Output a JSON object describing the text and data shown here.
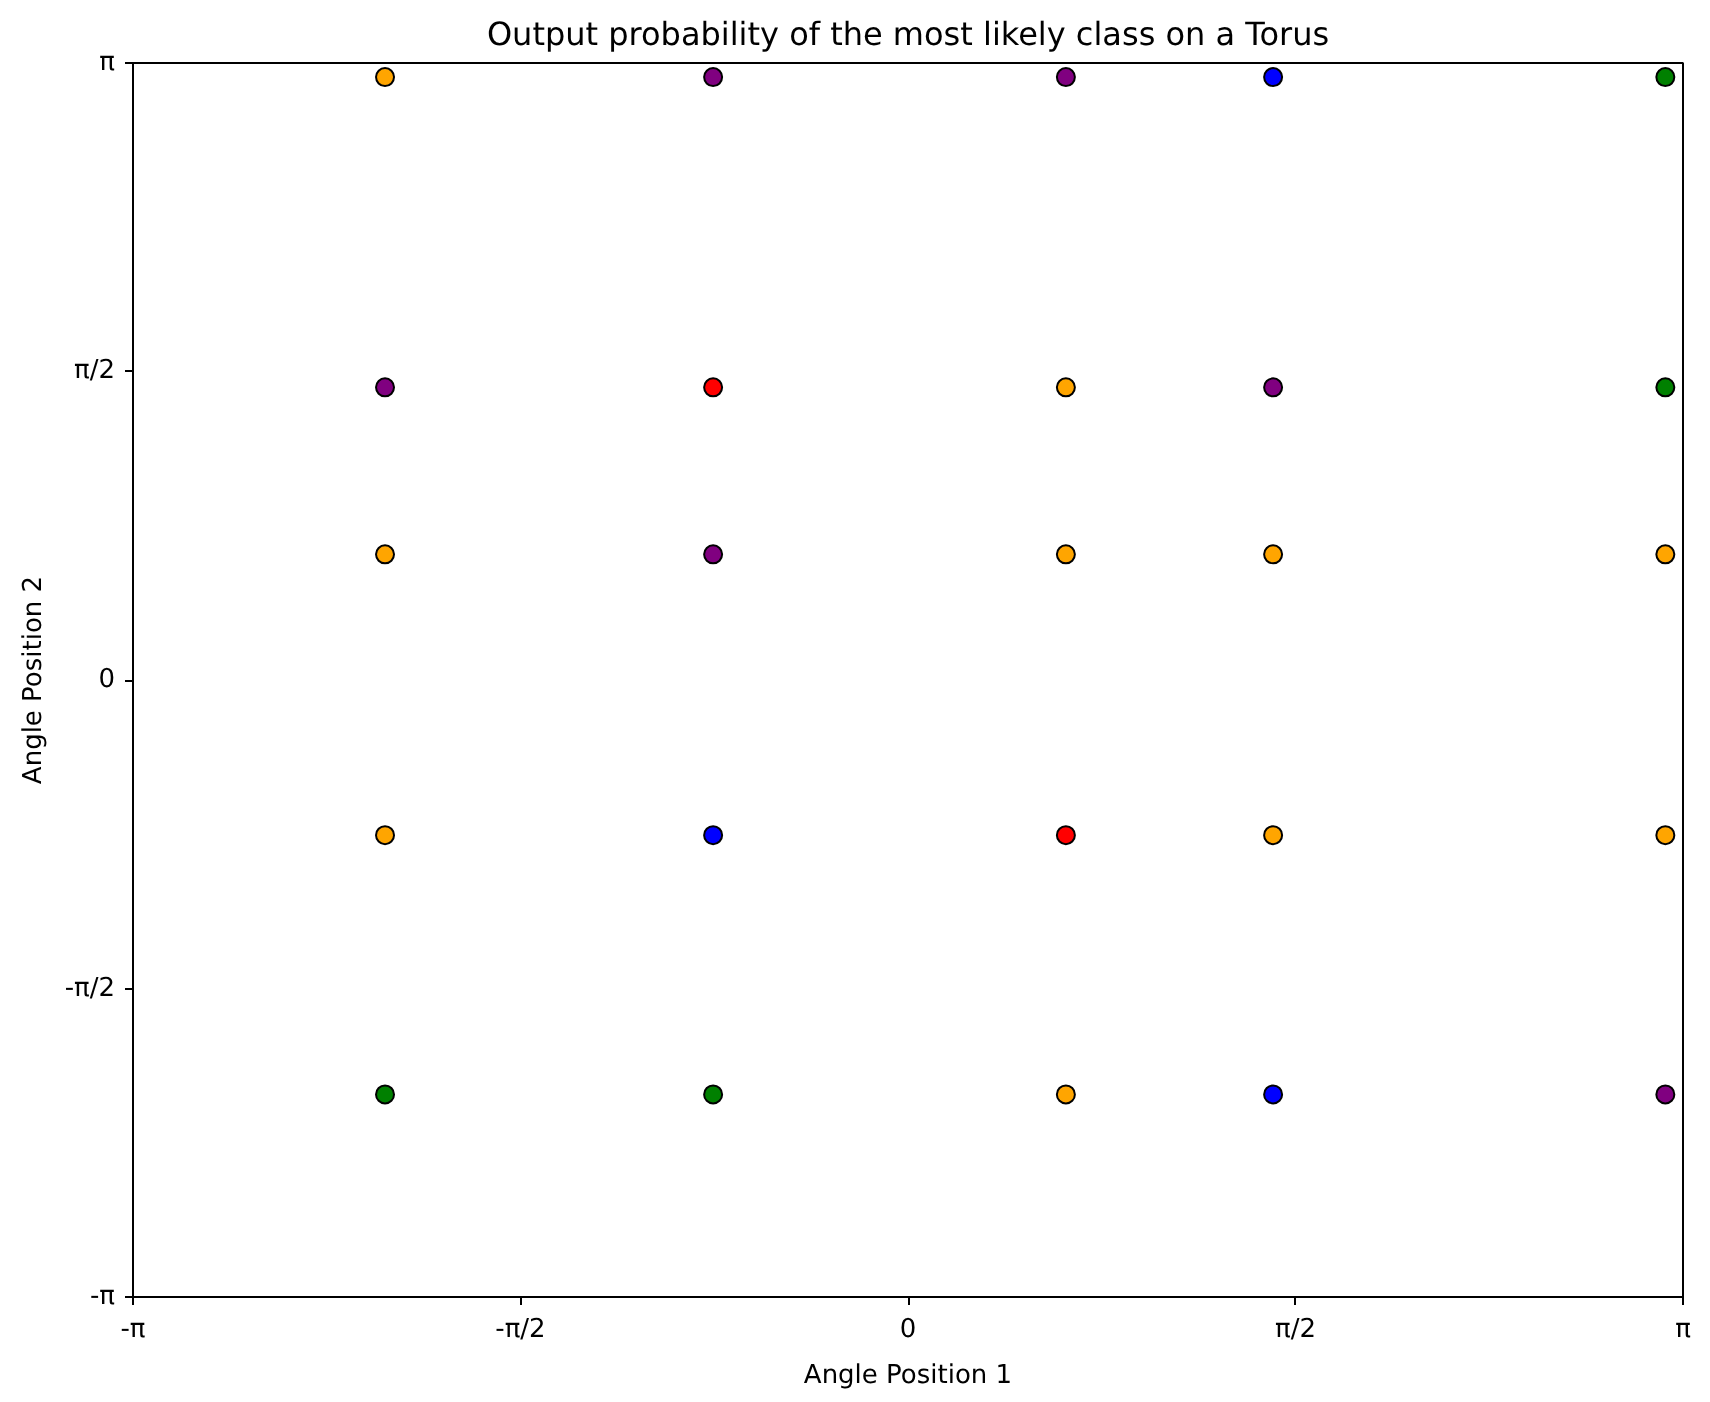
{
  "chart_data": {
    "type": "scatter",
    "title": "Output probability of the most likely class on a Torus",
    "xlabel": "Angle Position 1",
    "ylabel": "Angle Position 2",
    "xlim": [
      -3.14159,
      3.14159
    ],
    "ylim": [
      -3.14159,
      3.14159
    ],
    "xticks": [
      {
        "value": -3.14159,
        "label": "-π"
      },
      {
        "value": -1.5708,
        "label": "-π/2"
      },
      0,
      {
        "value": 1.5708,
        "label": "π/2"
      },
      {
        "value": 3.14159,
        "label": "π"
      }
    ],
    "yticks": [
      {
        "value": -3.14159,
        "label": "-π"
      },
      {
        "value": -1.5708,
        "label": "-π/2"
      },
      0,
      {
        "value": 1.5708,
        "label": "π/2"
      },
      {
        "value": 3.14159,
        "label": "π"
      }
    ],
    "grid": false,
    "marker": "circle",
    "series": [
      {
        "color": "#ffa500",
        "x": [
          -2.12,
          0.64,
          -2.12,
          0.64,
          1.48,
          3.07,
          -2.12,
          1.48,
          3.07,
          0.64
        ],
        "values": [
          3.07,
          1.49,
          0.64,
          0.64,
          0.64,
          0.64,
          -0.79,
          -0.79,
          -0.79,
          -2.11
        ]
      },
      {
        "color": "#800080",
        "x": [
          -0.79,
          0.64,
          -2.12,
          1.48,
          -0.79,
          3.07
        ],
        "values": [
          3.07,
          3.07,
          1.49,
          1.49,
          0.64,
          -2.11
        ]
      },
      {
        "color": "#ff0000",
        "x": [
          -0.79,
          0.64
        ],
        "values": [
          1.49,
          -0.79
        ]
      },
      {
        "color": "#0000ff",
        "x": [
          1.48,
          -0.79,
          1.48
        ],
        "values": [
          3.07,
          -0.79,
          -2.11
        ]
      },
      {
        "color": "#008000",
        "x": [
          3.07,
          3.07,
          -2.12,
          -0.79
        ],
        "values": [
          3.07,
          1.49,
          -2.11,
          -2.11
        ]
      }
    ]
  }
}
